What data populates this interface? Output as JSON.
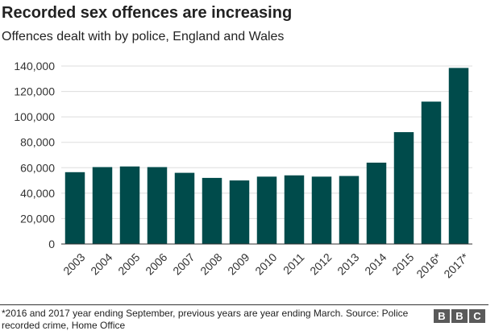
{
  "title": "Recorded sex offences are increasing",
  "subtitle": "Offences dealt with by police, England and Wales",
  "footnote": "*2016 and 2017 year ending September, previous years are year ending March. Source: Police recorded crime, Home Office",
  "logo": {
    "letters": [
      "B",
      "B",
      "C"
    ]
  },
  "colors": {
    "bar": "#004b4b",
    "grid": "#dddddd",
    "axis": "#333333"
  },
  "chart_data": {
    "type": "bar",
    "categories": [
      "2003",
      "2004",
      "2005",
      "2006",
      "2007",
      "2008",
      "2009",
      "2010",
      "2011",
      "2012",
      "2013",
      "2014",
      "2015",
      "2016*",
      "2017*"
    ],
    "values": [
      56500,
      60500,
      61000,
      60500,
      56000,
      52000,
      50000,
      53000,
      54000,
      53000,
      53500,
      64000,
      88000,
      112000,
      138500
    ],
    "yticks": [
      "0",
      "20,000",
      "40,000",
      "60,000",
      "80,000",
      "100,000",
      "120,000",
      "140,000"
    ],
    "ylim": [
      0,
      140000
    ],
    "grid": true
  }
}
